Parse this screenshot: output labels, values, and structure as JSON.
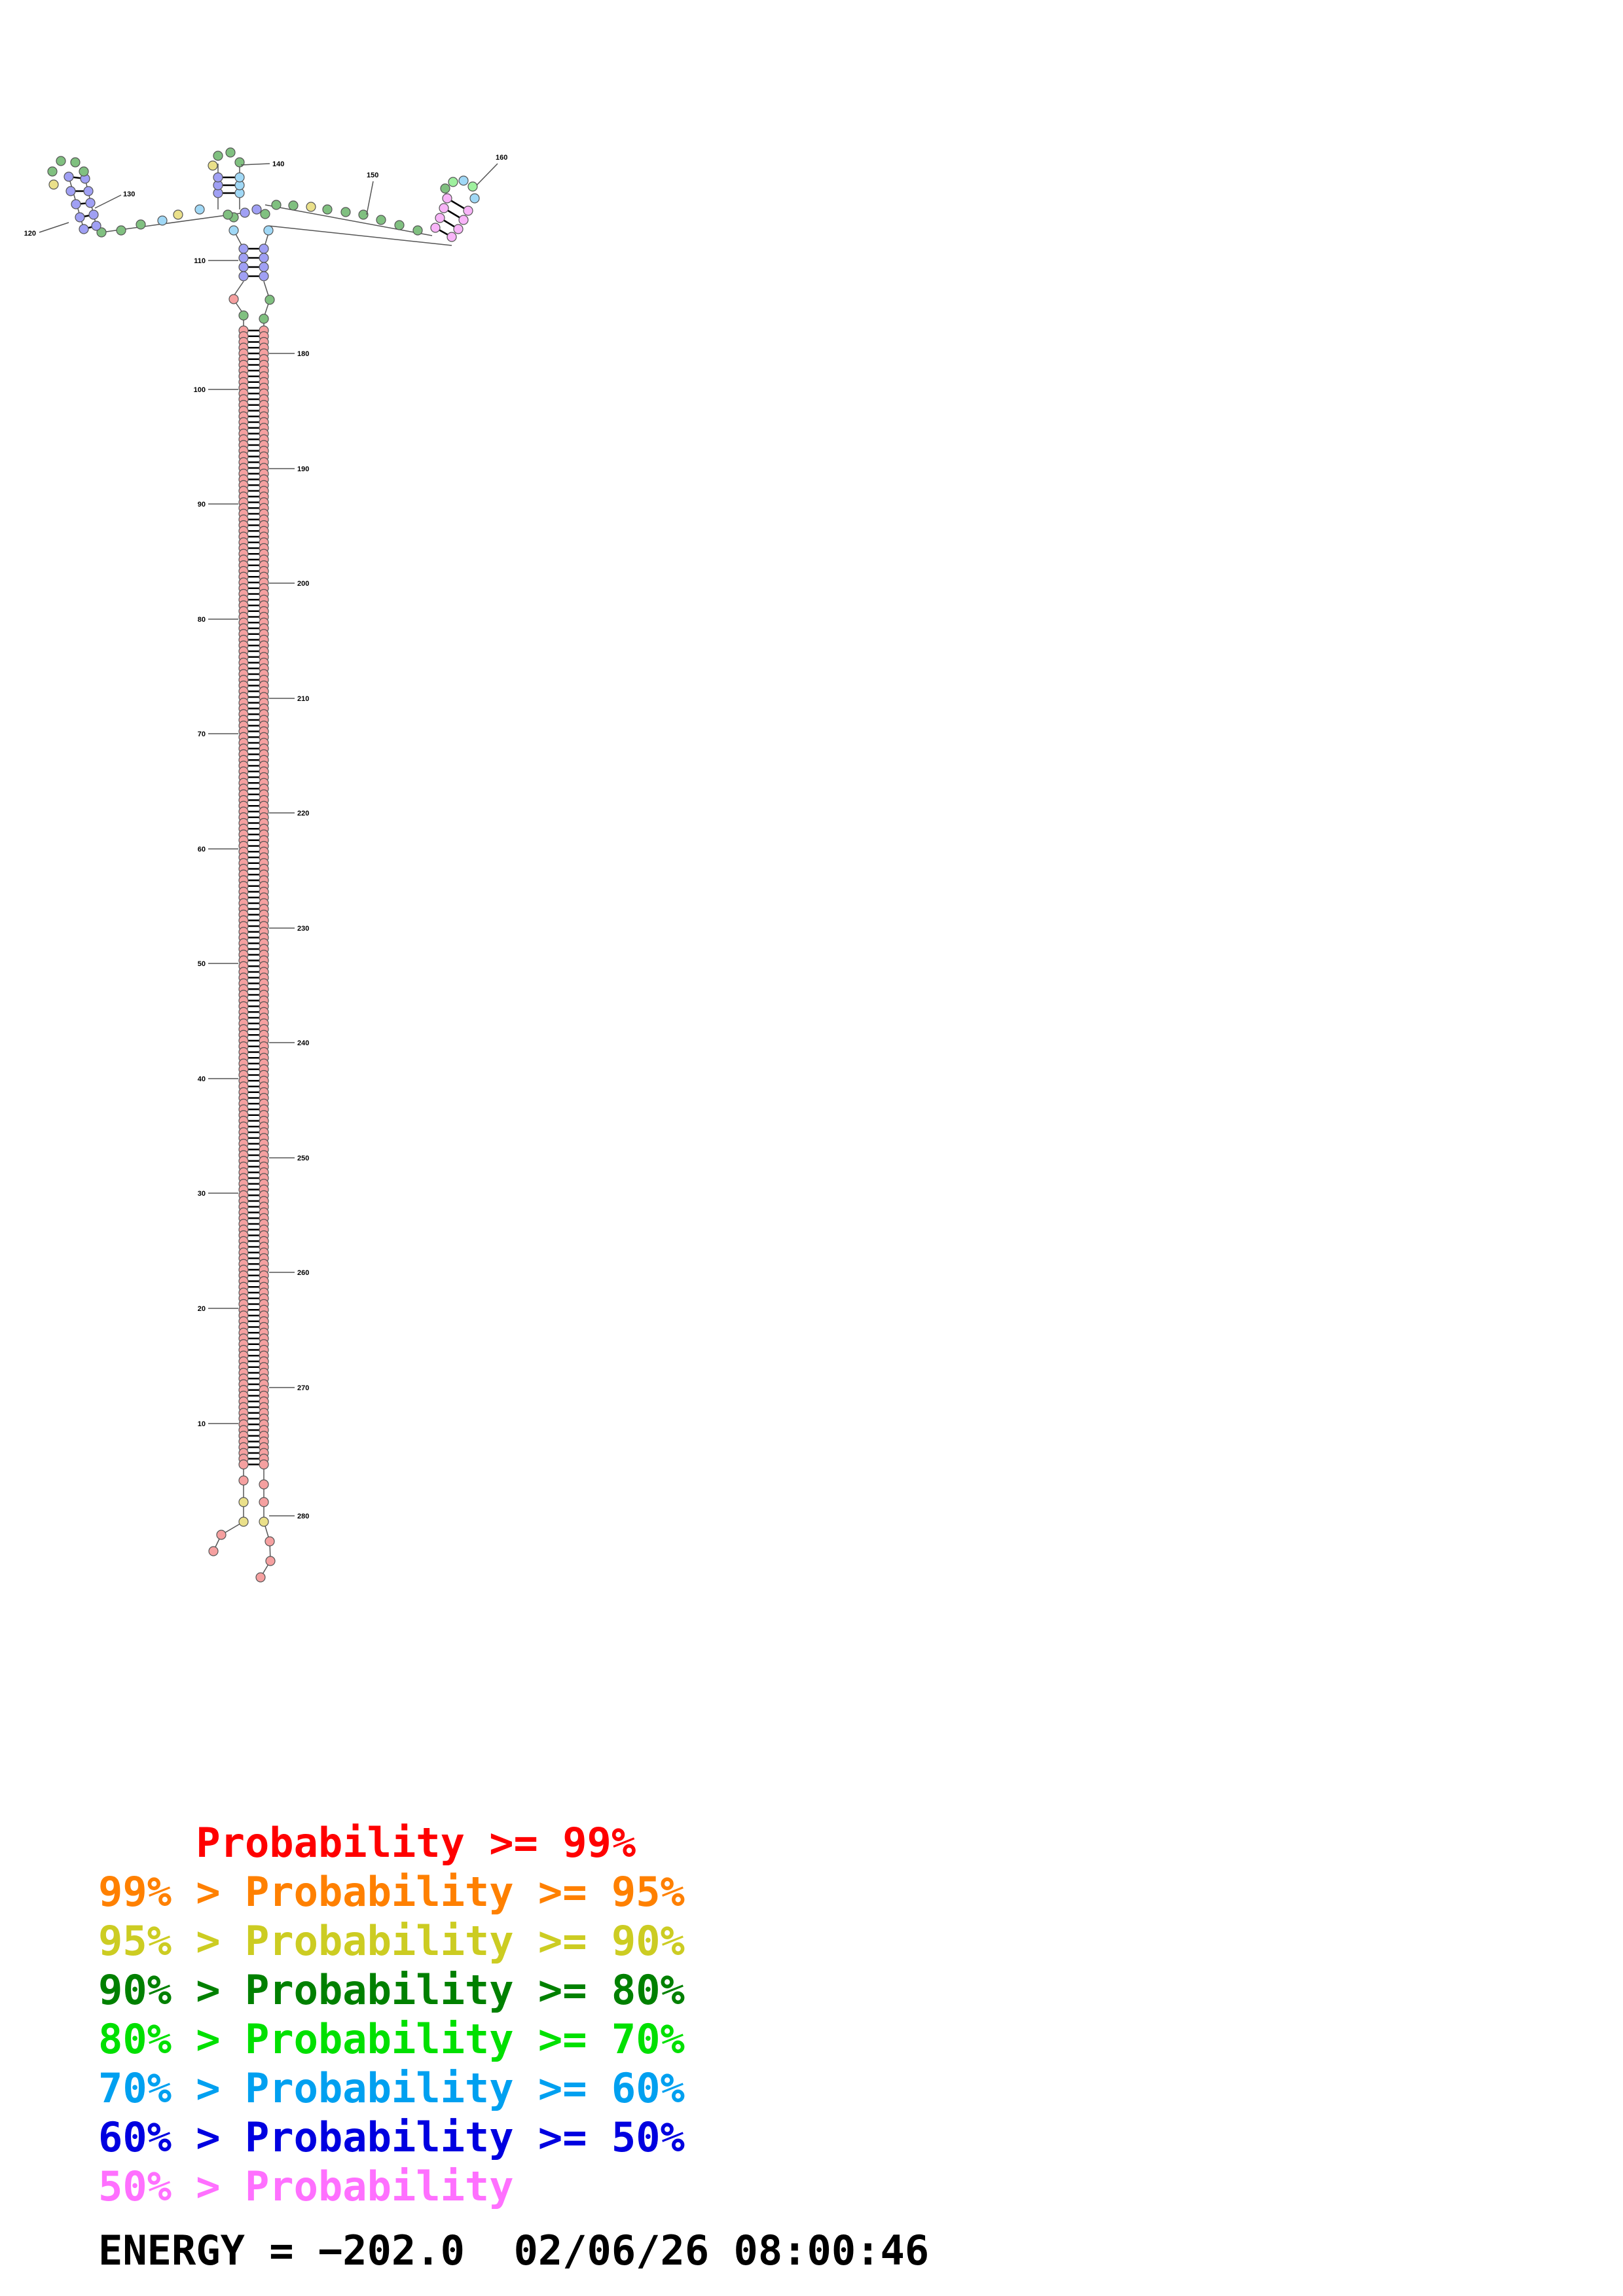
{
  "structure": {
    "numbering": {
      "left_strand": [
        "10",
        "20",
        "30",
        "40",
        "50",
        "60",
        "70",
        "80",
        "90",
        "100",
        "110"
      ],
      "right_strand": [
        "180",
        "190",
        "200",
        "210",
        "220",
        "230",
        "240",
        "250",
        "260",
        "270",
        "280"
      ],
      "top": [
        "120",
        "130",
        "140",
        "150",
        "160"
      ]
    },
    "probability_colors": {
      "p99": "#f5a0a0",
      "p95": "#f8c890",
      "p90": "#eae08a",
      "p80": "#80c080",
      "p70": "#9ef09e",
      "p60": "#a0d8f6",
      "p50": "#a0a0f4",
      "plow": "#f8b4f8"
    }
  },
  "legend": [
    {
      "prefix": "    ",
      "text": "Probability >= 99%",
      "color": "#ff0000"
    },
    {
      "prefix": "99% > ",
      "text": "Probability >= 95%",
      "color": "#ff8000"
    },
    {
      "prefix": "95% > ",
      "text": "Probability >= 90%",
      "color": "#cccc22"
    },
    {
      "prefix": "90% > ",
      "text": "Probability >= 80%",
      "color": "#008000"
    },
    {
      "prefix": "80% > ",
      "text": "Probability >= 70%",
      "color": "#00e000"
    },
    {
      "prefix": "70% > ",
      "text": "Probability >= 60%",
      "color": "#00a0f0"
    },
    {
      "prefix": "60% > ",
      "text": "Probability >= 50%",
      "color": "#0000e0"
    },
    {
      "prefix": "50% > ",
      "text": "Probability",
      "color": "#ff70ff"
    }
  ],
  "footer": {
    "energy_label": "ENERGY =",
    "energy_value": "−202.0",
    "timestamp": "02/06/26 08:00:46"
  }
}
